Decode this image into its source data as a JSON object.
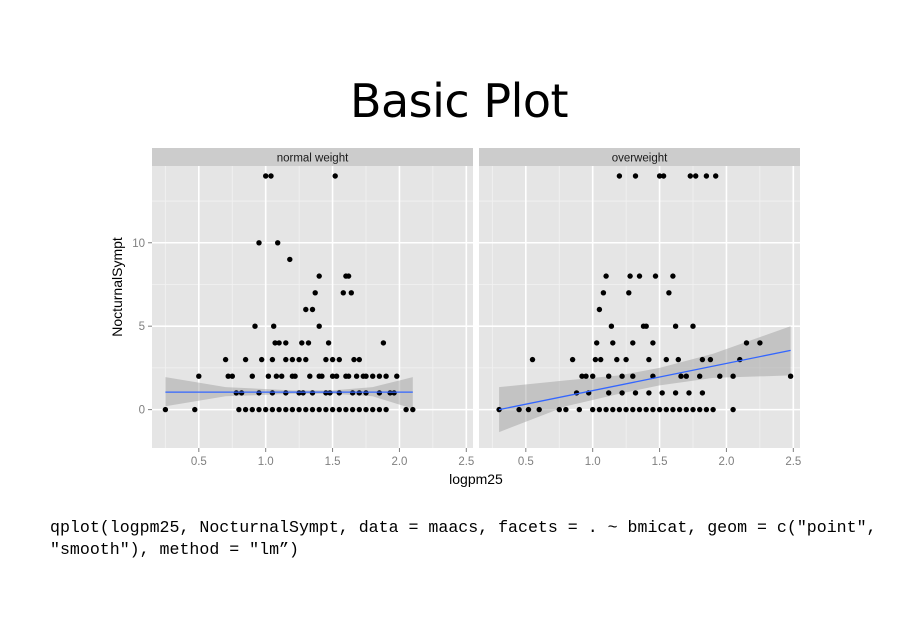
{
  "slide": {
    "title": "Basic Plot",
    "code": "qplot(logpm25, NocturnalSympt, data = maacs, facets = . ~ bmicat, geom = c(\"point\", \"smooth\"), method = \"lm”)"
  },
  "chart_data": {
    "type": "scatter",
    "facets": [
      "normal weight",
      "overweight"
    ],
    "xlabel": "logpm25",
    "ylabel": "NocturnalSympt",
    "xlim": [
      0.15,
      2.55
    ],
    "ylim": [
      -2.3,
      14.6
    ],
    "xticks": [
      0.5,
      1.0,
      1.5,
      2.0,
      2.5
    ],
    "xtick_labels": [
      "0.5",
      "1.0",
      "1.5",
      "2.0",
      "2.5"
    ],
    "yticks": [
      0,
      5,
      10
    ],
    "ytick_labels": [
      "0",
      "5",
      "10"
    ],
    "grid": true,
    "colors": {
      "panel": "#e5e5e5",
      "strip": "#cccccc",
      "grid": "#ffffff",
      "point": "#000000",
      "line": "#3366ff",
      "band": "#999999"
    },
    "panels": [
      {
        "facet": "normal weight",
        "fit": {
          "x": [
            0.25,
            2.1
          ],
          "y": [
            1.05,
            1.05
          ]
        },
        "band": {
          "x": [
            0.25,
            0.7,
            1.2,
            1.5,
            1.8,
            2.1
          ],
          "lower": [
            0.2,
            0.8,
            0.95,
            0.95,
            0.8,
            0.05
          ],
          "upper": [
            1.95,
            1.35,
            1.15,
            1.15,
            1.35,
            1.95
          ]
        },
        "points": [
          [
            0.25,
            0
          ],
          [
            0.47,
            0
          ],
          [
            0.5,
            2
          ],
          [
            0.7,
            3
          ],
          [
            0.72,
            2
          ],
          [
            0.75,
            2
          ],
          [
            0.78,
            1
          ],
          [
            0.82,
            1
          ],
          [
            0.85,
            3
          ],
          [
            0.9,
            2
          ],
          [
            0.92,
            5
          ],
          [
            0.95,
            10
          ],
          [
            0.97,
            3
          ],
          [
            1.0,
            14
          ],
          [
            1.02,
            2
          ],
          [
            1.04,
            14
          ],
          [
            1.05,
            3
          ],
          [
            1.06,
            5
          ],
          [
            1.07,
            4
          ],
          [
            1.08,
            2
          ],
          [
            1.09,
            10
          ],
          [
            1.1,
            4
          ],
          [
            1.12,
            2
          ],
          [
            1.15,
            3
          ],
          [
            1.18,
            9
          ],
          [
            1.2,
            3
          ],
          [
            1.22,
            2
          ],
          [
            1.25,
            3
          ],
          [
            1.27,
            4
          ],
          [
            1.3,
            6
          ],
          [
            1.32,
            4
          ],
          [
            1.33,
            2
          ],
          [
            1.35,
            6
          ],
          [
            1.37,
            7
          ],
          [
            1.4,
            8
          ],
          [
            1.4,
            5
          ],
          [
            1.42,
            2
          ],
          [
            1.45,
            3
          ],
          [
            1.47,
            4
          ],
          [
            1.5,
            2
          ],
          [
            1.52,
            14
          ],
          [
            1.53,
            2
          ],
          [
            1.55,
            3
          ],
          [
            1.58,
            7
          ],
          [
            1.6,
            8
          ],
          [
            1.62,
            8
          ],
          [
            1.64,
            7
          ],
          [
            1.66,
            3
          ],
          [
            1.68,
            2
          ],
          [
            1.7,
            3
          ],
          [
            1.73,
            2
          ],
          [
            1.75,
            2
          ],
          [
            1.8,
            2
          ],
          [
            1.85,
            2
          ],
          [
            1.88,
            4
          ],
          [
            1.9,
            2
          ],
          [
            1.93,
            1
          ],
          [
            1.96,
            1
          ],
          [
            1.98,
            2
          ],
          [
            2.05,
            0
          ],
          [
            2.1,
            0
          ],
          [
            0.8,
            0
          ],
          [
            0.85,
            0
          ],
          [
            0.9,
            0
          ],
          [
            0.95,
            0
          ],
          [
            1.0,
            0
          ],
          [
            1.05,
            0
          ],
          [
            1.1,
            0
          ],
          [
            1.15,
            0
          ],
          [
            1.2,
            0
          ],
          [
            1.25,
            0
          ],
          [
            1.3,
            0
          ],
          [
            1.35,
            0
          ],
          [
            1.4,
            0
          ],
          [
            1.45,
            0
          ],
          [
            1.5,
            0
          ],
          [
            1.55,
            0
          ],
          [
            1.6,
            0
          ],
          [
            1.65,
            0
          ],
          [
            1.7,
            0
          ],
          [
            1.75,
            0
          ],
          [
            1.8,
            0
          ],
          [
            1.85,
            0
          ],
          [
            1.9,
            0
          ],
          [
            0.95,
            1
          ],
          [
            1.05,
            1
          ],
          [
            1.15,
            1
          ],
          [
            1.25,
            1
          ],
          [
            1.35,
            1
          ],
          [
            1.45,
            1
          ],
          [
            1.55,
            1
          ],
          [
            1.65,
            1
          ],
          [
            1.75,
            1
          ],
          [
            1.85,
            1
          ],
          [
            1.2,
            2
          ],
          [
            1.4,
            2
          ],
          [
            1.6,
            2
          ],
          [
            1.3,
            3
          ],
          [
            1.5,
            3
          ],
          [
            1.15,
            4
          ],
          [
            1.7,
            1
          ],
          [
            1.28,
            1
          ],
          [
            1.48,
            1
          ],
          [
            1.62,
            2
          ]
        ]
      },
      {
        "facet": "overweight",
        "fit": {
          "x": [
            0.3,
            2.48
          ],
          "y": [
            0.0,
            3.55
          ]
        },
        "band": {
          "x": [
            0.3,
            0.8,
            1.2,
            1.5,
            1.9,
            2.48
          ],
          "lower": [
            -1.35,
            0.2,
            0.95,
            1.45,
            1.9,
            2.05
          ],
          "upper": [
            1.35,
            1.75,
            2.05,
            2.5,
            3.35,
            5.0
          ]
        },
        "points": [
          [
            0.3,
            0
          ],
          [
            0.45,
            0
          ],
          [
            0.52,
            0
          ],
          [
            0.55,
            3
          ],
          [
            0.6,
            0
          ],
          [
            0.75,
            0
          ],
          [
            0.8,
            0
          ],
          [
            0.85,
            3
          ],
          [
            0.88,
            1
          ],
          [
            0.9,
            0
          ],
          [
            0.92,
            2
          ],
          [
            0.95,
            2
          ],
          [
            0.97,
            1
          ],
          [
            1.0,
            2
          ],
          [
            1.02,
            3
          ],
          [
            1.03,
            4
          ],
          [
            1.05,
            6
          ],
          [
            1.06,
            3
          ],
          [
            1.08,
            7
          ],
          [
            1.1,
            8
          ],
          [
            1.12,
            2
          ],
          [
            1.14,
            5
          ],
          [
            1.15,
            4
          ],
          [
            1.18,
            3
          ],
          [
            1.2,
            14
          ],
          [
            1.22,
            2
          ],
          [
            1.25,
            3
          ],
          [
            1.27,
            7
          ],
          [
            1.28,
            8
          ],
          [
            1.3,
            4
          ],
          [
            1.32,
            14
          ],
          [
            1.35,
            8
          ],
          [
            1.38,
            5
          ],
          [
            1.4,
            5
          ],
          [
            1.42,
            3
          ],
          [
            1.45,
            4
          ],
          [
            1.47,
            8
          ],
          [
            1.5,
            14
          ],
          [
            1.53,
            14
          ],
          [
            1.55,
            3
          ],
          [
            1.57,
            7
          ],
          [
            1.6,
            8
          ],
          [
            1.62,
            5
          ],
          [
            1.64,
            3
          ],
          [
            1.66,
            2
          ],
          [
            1.7,
            2
          ],
          [
            1.73,
            14
          ],
          [
            1.75,
            5
          ],
          [
            1.77,
            14
          ],
          [
            1.8,
            2
          ],
          [
            1.82,
            3
          ],
          [
            1.85,
            14
          ],
          [
            1.88,
            3
          ],
          [
            1.92,
            14
          ],
          [
            1.95,
            2
          ],
          [
            2.05,
            2
          ],
          [
            2.1,
            3
          ],
          [
            2.15,
            4
          ],
          [
            2.25,
            4
          ],
          [
            2.48,
            2
          ],
          [
            1.0,
            0
          ],
          [
            1.05,
            0
          ],
          [
            1.1,
            0
          ],
          [
            1.15,
            0
          ],
          [
            1.2,
            0
          ],
          [
            1.25,
            0
          ],
          [
            1.3,
            0
          ],
          [
            1.35,
            0
          ],
          [
            1.4,
            0
          ],
          [
            1.45,
            0
          ],
          [
            1.5,
            0
          ],
          [
            1.55,
            0
          ],
          [
            1.6,
            0
          ],
          [
            1.65,
            0
          ],
          [
            1.7,
            0
          ],
          [
            1.75,
            0
          ],
          [
            1.8,
            0
          ],
          [
            1.85,
            0
          ],
          [
            1.9,
            0
          ],
          [
            2.05,
            0
          ],
          [
            1.12,
            1
          ],
          [
            1.22,
            1
          ],
          [
            1.32,
            1
          ],
          [
            1.42,
            1
          ],
          [
            1.52,
            1
          ],
          [
            1.62,
            1
          ],
          [
            1.72,
            1
          ],
          [
            1.82,
            1
          ],
          [
            1.3,
            2
          ],
          [
            1.45,
            2
          ]
        ]
      }
    ]
  }
}
